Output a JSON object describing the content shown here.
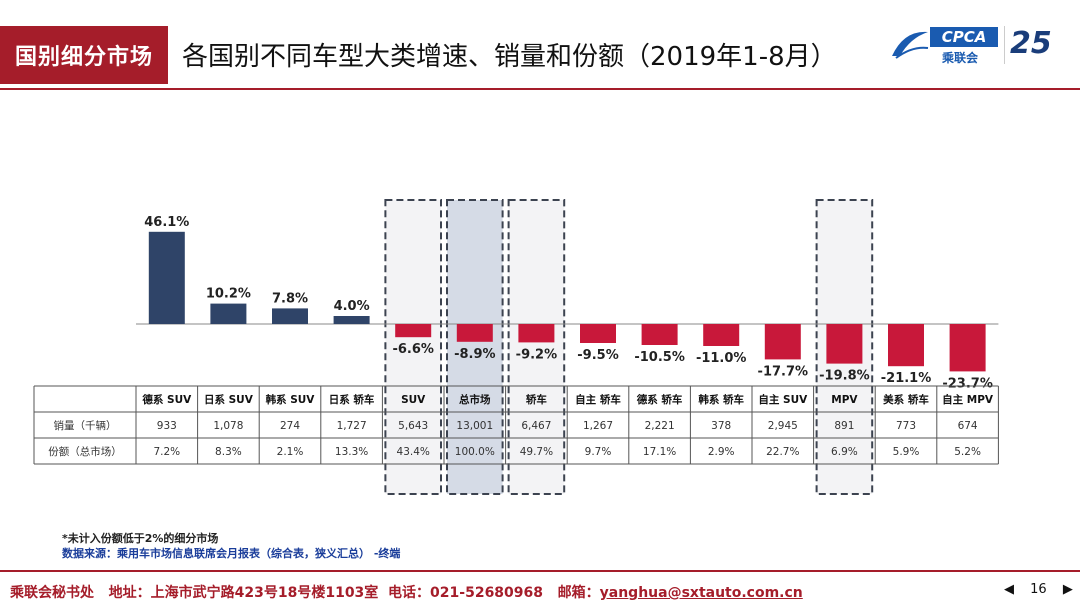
{
  "header": {
    "tag": "国别细分市场",
    "title": "各国别不同车型大类增速、销量和份额（2019年1-8月）"
  },
  "logo": {
    "brand": "CPCA",
    "cn_name": "乘联会",
    "anniversary": "25"
  },
  "chart_data": {
    "type": "bar",
    "categories": [
      "德系 SUV",
      "日系 SUV",
      "韩系 SUV",
      "日系 轿车",
      "SUV",
      "总市场",
      "轿车",
      "自主 轿车",
      "德系 轿车",
      "韩系 轿车",
      "自主 SUV",
      "MPV",
      "美系 轿车",
      "自主 MPV"
    ],
    "values": [
      46.1,
      10.2,
      7.8,
      4.0,
      -6.6,
      -8.9,
      -9.2,
      -9.5,
      -10.5,
      -11.0,
      -17.7,
      -19.8,
      -21.1,
      -23.7
    ],
    "value_labels": [
      "46.1%",
      "10.2%",
      "7.8%",
      "4.0%",
      "-6.6%",
      "-8.9%",
      "-9.2%",
      "-9.5%",
      "-10.5%",
      "-11.0%",
      "-17.7%",
      "-19.8%",
      "-21.1%",
      "-23.7%"
    ],
    "positive_color": "#2f4468",
    "negative_color": "#c8183a",
    "highlighted": [
      "SUV",
      "总市场",
      "轿车",
      "MPV"
    ],
    "filled_highlight": "总市场"
  },
  "table": {
    "rows": [
      {
        "label": "销量（千辆）",
        "values": [
          "933",
          "1,078",
          "274",
          "1,727",
          "5,643",
          "13,001",
          "6,467",
          "1,267",
          "2,221",
          "378",
          "2,945",
          "891",
          "773",
          "674"
        ]
      },
      {
        "label": "份额（总市场）",
        "values": [
          "7.2%",
          "8.3%",
          "2.1%",
          "13.3%",
          "43.4%",
          "100.0%",
          "49.7%",
          "9.7%",
          "17.1%",
          "2.9%",
          "22.7%",
          "6.9%",
          "5.9%",
          "5.2%"
        ]
      }
    ]
  },
  "footnotes": {
    "note": "*未计入份额低于2%的细分市场",
    "source": "数据来源：乘用车市场信息联席会月报表（综合表，狭义汇总）  -终端"
  },
  "footer": {
    "org": "乘联会秘书处",
    "address": "地址：上海市武宁路423号18号楼1103室",
    "phone": "电话：021-52680968",
    "email_label": "邮箱：",
    "email": "yanghua@sxtauto.com.cn",
    "page": "16",
    "prev": "◀",
    "next": "▶"
  }
}
